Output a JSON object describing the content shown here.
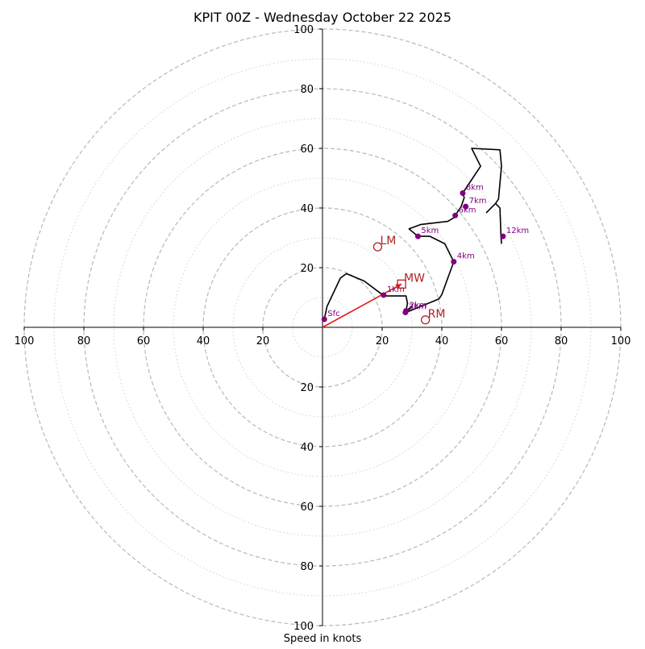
{
  "chart_data": {
    "type": "hodograph",
    "title": "KPIT 00Z - Wednesday October 22 2025",
    "xlabel": "Speed in knots",
    "axis_range": [
      -100,
      100
    ],
    "x_ticks": [
      {
        "value": -100,
        "label": "100"
      },
      {
        "value": -80,
        "label": "80"
      },
      {
        "value": -60,
        "label": "60"
      },
      {
        "value": -40,
        "label": "40"
      },
      {
        "value": -20,
        "label": "20"
      },
      {
        "value": 20,
        "label": "20"
      },
      {
        "value": 40,
        "label": "40"
      },
      {
        "value": 60,
        "label": "60"
      },
      {
        "value": 80,
        "label": "80"
      },
      {
        "value": 100,
        "label": "100"
      }
    ],
    "y_ticks": [
      {
        "value": 100,
        "label": "100"
      },
      {
        "value": 80,
        "label": "80"
      },
      {
        "value": 60,
        "label": "60"
      },
      {
        "value": 40,
        "label": "40"
      },
      {
        "value": 20,
        "label": "20"
      },
      {
        "value": -20,
        "label": "20"
      },
      {
        "value": -40,
        "label": "40"
      },
      {
        "value": -60,
        "label": "60"
      },
      {
        "value": -80,
        "label": "80"
      },
      {
        "value": -100,
        "label": "100"
      }
    ],
    "rings_dashed": [
      20,
      40,
      60,
      80,
      100
    ],
    "rings_dotted": [
      10,
      30,
      50,
      70,
      90
    ],
    "hodograph_trace": [
      [
        0.6,
        2.7
      ],
      [
        1.5,
        7.0
      ],
      [
        6.0,
        16.5
      ],
      [
        8.0,
        18.0
      ],
      [
        14.0,
        15.5
      ],
      [
        20.0,
        11.0
      ],
      [
        21.0,
        10.5
      ],
      [
        22.0,
        10.5
      ],
      [
        28.0,
        10.5
      ],
      [
        28.5,
        8.0
      ],
      [
        28.0,
        5.5
      ],
      [
        30.0,
        7.0
      ],
      [
        28.0,
        5.0
      ],
      [
        39.0,
        9.5
      ],
      [
        40.0,
        11.0
      ],
      [
        44.0,
        22.0
      ],
      [
        41.0,
        28.0
      ],
      [
        36.0,
        30.5
      ],
      [
        32.0,
        30.5
      ],
      [
        29.0,
        33.0
      ],
      [
        33.0,
        34.5
      ],
      [
        42.0,
        35.5
      ],
      [
        44.5,
        37.0
      ],
      [
        44.8,
        38.0
      ],
      [
        46.5,
        40.5
      ],
      [
        47.5,
        43.5
      ],
      [
        47.0,
        45.0
      ],
      [
        53.0,
        54.0
      ],
      [
        50.0,
        60.0
      ],
      [
        59.5,
        59.5
      ],
      [
        60.0,
        54.0
      ],
      [
        59.0,
        43.0
      ],
      [
        58.0,
        41.5
      ],
      [
        55.0,
        38.5
      ],
      [
        58.0,
        41.5
      ],
      [
        59.5,
        40.0
      ],
      [
        59.8,
        31.0
      ],
      [
        60.0,
        28.0
      ]
    ],
    "height_points": [
      {
        "label": "Sfc",
        "u": 0.6,
        "v": 2.7
      },
      {
        "label": "1km",
        "u": 20.5,
        "v": 10.8
      },
      {
        "label": "2km",
        "u": 28.0,
        "v": 5.5
      },
      {
        "label": "3km",
        "u": 27.8,
        "v": 5.0
      },
      {
        "label": "4km",
        "u": 44.0,
        "v": 22.0
      },
      {
        "label": "5km",
        "u": 32.0,
        "v": 30.5
      },
      {
        "label": "6km",
        "u": 44.5,
        "v": 37.5
      },
      {
        "label": "7km",
        "u": 48.0,
        "v": 40.5
      },
      {
        "label": "8km",
        "u": 47.0,
        "v": 45.0
      },
      {
        "label": "12km",
        "u": 60.5,
        "v": 30.5
      }
    ],
    "markers": [
      {
        "label": "LM",
        "shape": "circle",
        "u": 18.5,
        "v": 27.0
      },
      {
        "label": "MW",
        "shape": "square",
        "u": 26.5,
        "v": 14.5
      },
      {
        "label": "RM",
        "shape": "circle",
        "u": 34.5,
        "v": 2.5
      }
    ],
    "mean_wind_vector": {
      "u": 26.5,
      "v": 14.5
    },
    "colors": {
      "trace": "#000000",
      "height_points": "#800080",
      "markers": "#b22222",
      "vector": "#e41a1c",
      "ring": "#b8b8b8",
      "ring_dotted": "#d0d0d0",
      "axis": "#000000"
    }
  }
}
